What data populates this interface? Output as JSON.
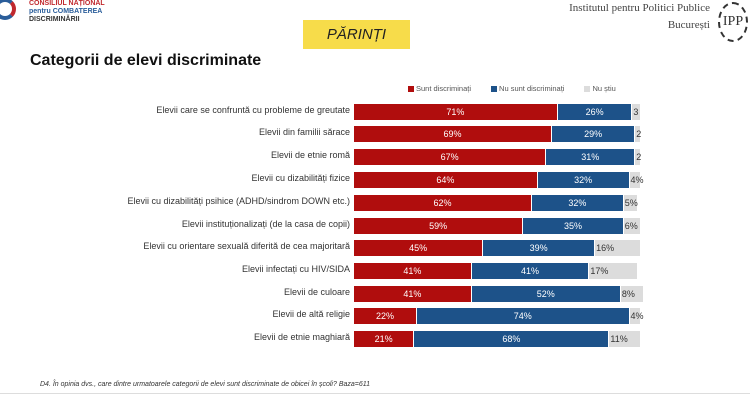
{
  "header": {
    "org_line1": "CONSILIUL NAȚIONAL",
    "org_line2": "pentru COMBATEREA",
    "org_line3": "DISCRIMINĂRII",
    "section": "PĂRINȚI",
    "ipp_line1": "Institutul pentru Politici Publice",
    "ipp_line2": "București",
    "ipp_logo": "IPP"
  },
  "title": "Categorii de elevi discriminate",
  "colors": {
    "discriminated": "#b00d0d",
    "not_discriminated": "#1d5289",
    "dont_know": "#dcdcdc"
  },
  "chart_data": {
    "type": "bar",
    "stacked": true,
    "orientation": "horizontal",
    "legend": [
      "Sunt discriminați",
      "Nu sunt discriminați",
      "Nu știu"
    ],
    "categories": [
      "Elevii care se confruntă cu probleme de greutate",
      "Elevii din familii sărace",
      "Elevii de etnie romă",
      "Elevii cu dizabilități fizice",
      "Elevii cu dizabilități psihice (ADHD/sindrom DOWN etc.)",
      "Elevii instituționalizați (de la casa de copii)",
      "Elevii cu orientare sexuală diferită de cea majoritară",
      "Elevii infectați cu HIV/SIDA",
      "Elevii de culoare",
      "Elevii de altă religie",
      "Elevii de etnie maghiară"
    ],
    "series": [
      {
        "name": "Sunt discriminați",
        "values": [
          71,
          69,
          67,
          64,
          62,
          59,
          45,
          41,
          41,
          22,
          21
        ]
      },
      {
        "name": "Nu sunt discriminați",
        "values": [
          26,
          29,
          31,
          32,
          32,
          35,
          39,
          41,
          52,
          74,
          68
        ]
      },
      {
        "name": "Nu știu",
        "values": [
          3,
          2,
          2,
          4,
          5,
          6,
          16,
          17,
          8,
          4,
          11
        ]
      }
    ],
    "labels": [
      [
        "71%",
        "26%",
        "3"
      ],
      [
        "69%",
        "29%",
        "2"
      ],
      [
        "67%",
        "31%",
        "2"
      ],
      [
        "64%",
        "32%",
        "4%"
      ],
      [
        "62%",
        "32%",
        "5%"
      ],
      [
        "59%",
        "35%",
        "6%"
      ],
      [
        "45%",
        "39%",
        "16%"
      ],
      [
        "41%",
        "41%",
        "17%"
      ],
      [
        "41%",
        "52%",
        "8%"
      ],
      [
        "22%",
        "74%",
        "4%"
      ],
      [
        "21%",
        "68%",
        "11%"
      ]
    ],
    "xlim": [
      0,
      100
    ]
  },
  "footnote": "D4. În opinia dvs., care dintre urmatoarele categorii de elevi sunt discriminate de obicei în școli? Baza=611"
}
